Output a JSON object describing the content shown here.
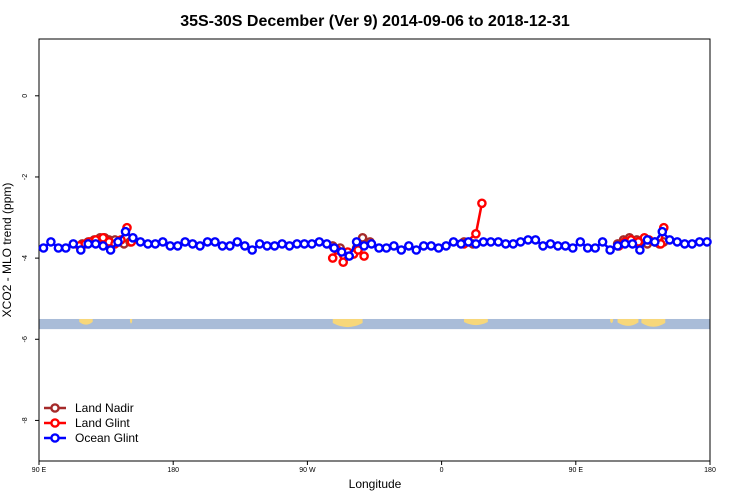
{
  "chart_data": {
    "type": "line",
    "title": "35S-30S December (Ver 9)   2014-09-06 to 2018-12-31",
    "xlabel": "Longitude",
    "ylabel": "XCO2 - MLO trend (ppm)",
    "xlim": [
      90,
      540
    ],
    "ylim": [
      -9,
      1.4
    ],
    "x_ticks": [
      {
        "value": 90,
        "label": "90 E"
      },
      {
        "value": 180,
        "label": "180"
      },
      {
        "value": 270,
        "label": "90 W"
      },
      {
        "value": 360,
        "label": "0"
      },
      {
        "value": 450,
        "label": "90 E"
      },
      {
        "value": 540,
        "label": "180"
      }
    ],
    "y_ticks": [
      {
        "value": 0,
        "label": "0"
      },
      {
        "value": -2,
        "label": "-2"
      },
      {
        "value": -4,
        "label": "-4"
      },
      {
        "value": -6,
        "label": "-6"
      },
      {
        "value": -8,
        "label": "-8"
      }
    ],
    "legend_position": "bottom-left",
    "map_strip": {
      "y_range": [
        -5.75,
        -5.5
      ],
      "ocean_color": "#a9bcd8",
      "land_color": "#f7d77a",
      "land_segments": [
        {
          "x": [
            117,
            126
          ],
          "depth": 0.7
        },
        {
          "x": [
            151,
            152.5
          ],
          "depth": 0.55
        },
        {
          "x": [
            287,
            307
          ],
          "depth": 1.0
        },
        {
          "x": [
            375,
            391
          ],
          "depth": 0.75
        },
        {
          "x": [
            473,
            475
          ],
          "depth": 0.5
        },
        {
          "x": [
            478,
            492
          ],
          "depth": 0.85
        },
        {
          "x": [
            494,
            510
          ],
          "depth": 0.95
        }
      ]
    },
    "series": [
      {
        "name": "Land Nadir",
        "color": "#a52a2a",
        "segments": [
          {
            "x": [
              119,
              123,
              127,
              131,
              134,
              137,
              141,
              144,
              147,
              151
            ],
            "y": [
              -3.65,
              -3.6,
              -3.55,
              -3.5,
              -3.5,
              -3.55,
              -3.55,
              -3.6,
              -3.65,
              -3.6
            ]
          },
          {
            "x": [
              287,
              292
            ],
            "y": [
              -3.7,
              -3.75
            ]
          },
          {
            "x": [
              303,
              307,
              312
            ],
            "y": [
              -3.75,
              -3.5,
              -3.6
            ]
          },
          {
            "x": [
              375,
              381
            ],
            "y": [
              -3.6,
              -3.65
            ]
          },
          {
            "x": [
              478,
              482,
              486,
              491,
              494,
              498
            ],
            "y": [
              -3.65,
              -3.55,
              -3.5,
              -3.55,
              -3.6,
              -3.65
            ]
          },
          {
            "x": [
              506,
              509
            ],
            "y": [
              -3.65,
              -3.6
            ]
          }
        ]
      },
      {
        "name": "Land Glint",
        "color": "#ff0000",
        "segments": [
          {
            "x": [
              117,
              121,
              124,
              128,
              133,
              137,
              141,
              145,
              149,
              152
            ],
            "y": [
              -3.7,
              -3.65,
              -3.6,
              -3.55,
              -3.5,
              -3.6,
              -3.65,
              -3.55,
              -3.25,
              -3.6
            ]
          },
          {
            "x": [
              287,
              290,
              294,
              297,
              301,
              304,
              308
            ],
            "y": [
              -4.0,
              -3.8,
              -4.1,
              -3.85,
              -3.9,
              -3.8,
              -3.95
            ]
          },
          {
            "x": [
              375,
              383,
              387
            ],
            "y": [
              -3.65,
              -3.4,
              -2.65
            ]
          },
          {
            "x": [
              479,
              483,
              487,
              492,
              496,
              499,
              503,
              507,
              509
            ],
            "y": [
              -3.7,
              -3.6,
              -3.55,
              -3.6,
              -3.5,
              -3.55,
              -3.6,
              -3.65,
              -3.25
            ]
          }
        ]
      },
      {
        "name": "Ocean Glint",
        "color": "#0000ff",
        "segments": [
          {
            "x": [
              93,
              98,
              103,
              108,
              113,
              118,
              123,
              128,
              133,
              138,
              143,
              148,
              153,
              158,
              163,
              168,
              173,
              178,
              183,
              188,
              193,
              198,
              203,
              208,
              213,
              218,
              223,
              228,
              233,
              238,
              243,
              248,
              253,
              258,
              263,
              268,
              273,
              278,
              283,
              288,
              293,
              298,
              303,
              308,
              313,
              318,
              323,
              328,
              333,
              338,
              343,
              348,
              353,
              358,
              363,
              368,
              373,
              378,
              383,
              388,
              393,
              398,
              403,
              408,
              413,
              418,
              423,
              428,
              433,
              438,
              443,
              448,
              453,
              458,
              463,
              468,
              473,
              478,
              483,
              488,
              493,
              498,
              503,
              508,
              513,
              518,
              523,
              528,
              533,
              538
            ],
            "y": [
              -3.75,
              -3.6,
              -3.75,
              -3.75,
              -3.65,
              -3.8,
              -3.65,
              -3.65,
              -3.7,
              -3.8,
              -3.6,
              -3.35,
              -3.5,
              -3.6,
              -3.65,
              -3.65,
              -3.6,
              -3.7,
              -3.7,
              -3.6,
              -3.65,
              -3.7,
              -3.6,
              -3.6,
              -3.7,
              -3.7,
              -3.6,
              -3.7,
              -3.8,
              -3.65,
              -3.7,
              -3.7,
              -3.65,
              -3.7,
              -3.65,
              -3.65,
              -3.65,
              -3.6,
              -3.65,
              -3.75,
              -3.85,
              -3.95,
              -3.6,
              -3.7,
              -3.65,
              -3.75,
              -3.75,
              -3.7,
              -3.8,
              -3.7,
              -3.8,
              -3.7,
              -3.7,
              -3.75,
              -3.7,
              -3.6,
              -3.65,
              -3.6,
              -3.65,
              -3.6,
              -3.6,
              -3.6,
              -3.65,
              -3.65,
              -3.6,
              -3.55,
              -3.55,
              -3.7,
              -3.65,
              -3.7,
              -3.7,
              -3.75,
              -3.6,
              -3.75,
              -3.75,
              -3.6,
              -3.8,
              -3.7,
              -3.65,
              -3.65,
              -3.8,
              -3.55,
              -3.6,
              -3.35,
              -3.55,
              -3.6,
              -3.65,
              -3.65,
              -3.6,
              -3.6
            ]
          }
        ]
      }
    ]
  }
}
